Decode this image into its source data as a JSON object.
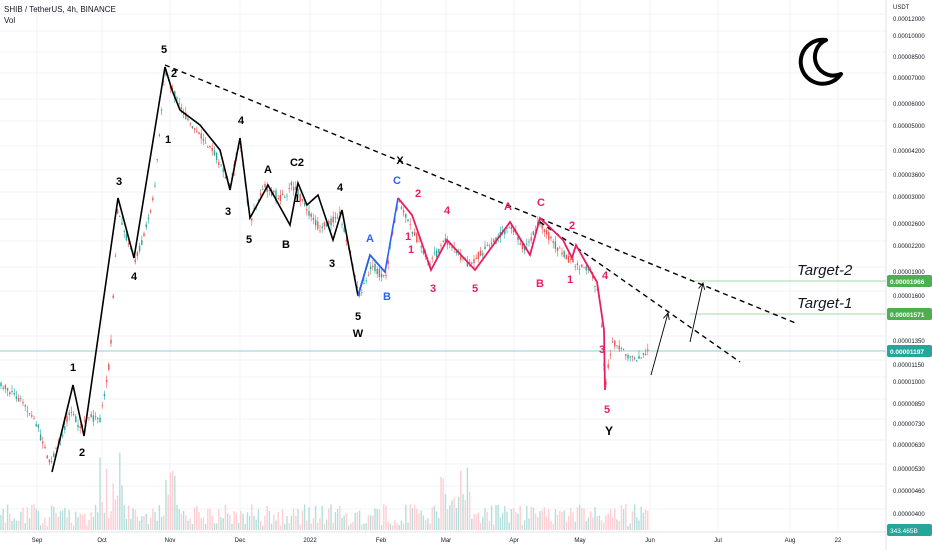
{
  "header": {
    "symbol_line": "SHIB / TetherUS, 4h, BINANCE",
    "indicator": "Vol"
  },
  "icons": {
    "theme": "moon-icon"
  },
  "colors": {
    "background": "#ffffff",
    "candle_up": "#26a69a",
    "candle_down": "#ef5350",
    "wave_black": "#000000",
    "wave_blue": "#2962ff",
    "wave_red": "#e91e63",
    "target_line": "#4caf50",
    "current_price_bg": "#26a69a",
    "volume": "#26a69a"
  },
  "chart_data": {
    "type": "candlestick",
    "title": "SHIB / TetherUS, 4h, BINANCE",
    "y_axis_unit": "USDT",
    "y_scale": "log",
    "y_ticks": [
      "0.00012000",
      "0.00010000",
      "0.00008500",
      "0.00007000",
      "0.00006000",
      "0.00005000",
      "0.00004200",
      "0.00003600",
      "0.00003000",
      "0.00002600",
      "0.00002200",
      "0.00001900",
      "0.00001600",
      "0.00001350",
      "0.00001150",
      "0.00001000",
      "0.00000850",
      "0.00000730",
      "0.00000630",
      "0.00000530",
      "0.00000460",
      "0.00000400"
    ],
    "x_ticks": [
      "Sep",
      "Oct",
      "Nov",
      "Dec",
      "2022",
      "Feb",
      "Mar",
      "Apr",
      "May",
      "Jun",
      "Jul",
      "Aug",
      "22"
    ],
    "price_labels": [
      {
        "text": "0.00001966",
        "role": "target-2"
      },
      {
        "text": "0.00001571",
        "role": "target-1"
      },
      {
        "text": "0.00001197",
        "role": "current"
      }
    ],
    "volume_label": "343.465B",
    "targets": [
      {
        "label": "Target-2",
        "price": 1.966e-05
      },
      {
        "label": "Target-1",
        "price": 1.571e-05
      }
    ],
    "wave_labels": {
      "black": [
        "1",
        "2",
        "3",
        "4",
        "5",
        "2",
        "1",
        "3",
        "4",
        "5",
        "3",
        "A",
        "C2",
        "B",
        "1",
        "3",
        "4",
        "3",
        "5",
        "W",
        "X",
        "1"
      ],
      "blue": [
        "A",
        "B",
        "C"
      ],
      "red": [
        "2",
        "4",
        "A",
        "C",
        "2",
        "3",
        "5",
        "B",
        "1",
        "3",
        "4",
        "5",
        "1"
      ],
      "y_label": "Y"
    }
  }
}
